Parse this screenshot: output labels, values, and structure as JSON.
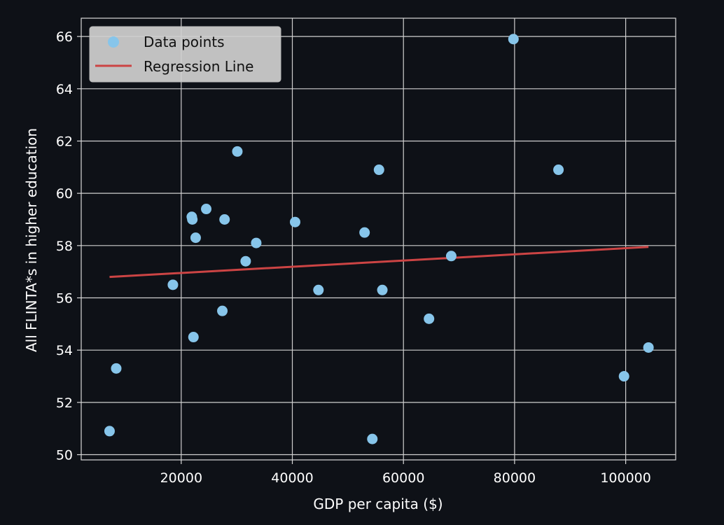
{
  "chart_data": {
    "type": "scatter",
    "title": "",
    "xlabel": "GDP per capita ($)",
    "ylabel": "All FLINTA*s in higher education",
    "xlim": [
      2000,
      109000
    ],
    "ylim": [
      49.8,
      66.7
    ],
    "x_ticks": [
      {
        "value": 20000,
        "label": "20000"
      },
      {
        "value": 40000,
        "label": "40000"
      },
      {
        "value": 60000,
        "label": "60000"
      },
      {
        "value": 80000,
        "label": "80000"
      },
      {
        "value": 100000,
        "label": "100000"
      }
    ],
    "y_ticks": [
      {
        "value": 50,
        "label": "50"
      },
      {
        "value": 52,
        "label": "52"
      },
      {
        "value": 54,
        "label": "54"
      },
      {
        "value": 56,
        "label": "56"
      },
      {
        "value": 58,
        "label": "58"
      },
      {
        "value": 60,
        "label": "60"
      },
      {
        "value": 62,
        "label": "62"
      },
      {
        "value": 64,
        "label": "64"
      },
      {
        "value": 66,
        "label": "66"
      }
    ],
    "grid": true,
    "legend_position": "top-left",
    "series": [
      {
        "name": "Data points",
        "kind": "scatter",
        "color": "#87c5ea",
        "points": [
          {
            "x": 7100,
            "y": 50.9
          },
          {
            "x": 8300,
            "y": 53.3
          },
          {
            "x": 18500,
            "y": 56.5
          },
          {
            "x": 21900,
            "y": 59.1
          },
          {
            "x": 22000,
            "y": 59.0
          },
          {
            "x": 22200,
            "y": 54.5
          },
          {
            "x": 22600,
            "y": 58.3
          },
          {
            "x": 24500,
            "y": 59.4
          },
          {
            "x": 27400,
            "y": 55.5
          },
          {
            "x": 27800,
            "y": 59.0
          },
          {
            "x": 30100,
            "y": 61.6
          },
          {
            "x": 31600,
            "y": 57.4
          },
          {
            "x": 33500,
            "y": 58.1
          },
          {
            "x": 40500,
            "y": 58.9
          },
          {
            "x": 44700,
            "y": 56.3
          },
          {
            "x": 53000,
            "y": 58.5
          },
          {
            "x": 54400,
            "y": 50.6
          },
          {
            "x": 55600,
            "y": 60.9
          },
          {
            "x": 56200,
            "y": 56.3
          },
          {
            "x": 64600,
            "y": 55.2
          },
          {
            "x": 68600,
            "y": 57.6
          },
          {
            "x": 79800,
            "y": 65.9
          },
          {
            "x": 87900,
            "y": 60.9
          },
          {
            "x": 99700,
            "y": 53.0
          },
          {
            "x": 104100,
            "y": 54.1
          }
        ]
      },
      {
        "name": "Regression Line",
        "kind": "line",
        "color": "#cc4444",
        "points": [
          {
            "x": 7100,
            "y": 56.8
          },
          {
            "x": 104100,
            "y": 57.95
          }
        ]
      }
    ]
  }
}
